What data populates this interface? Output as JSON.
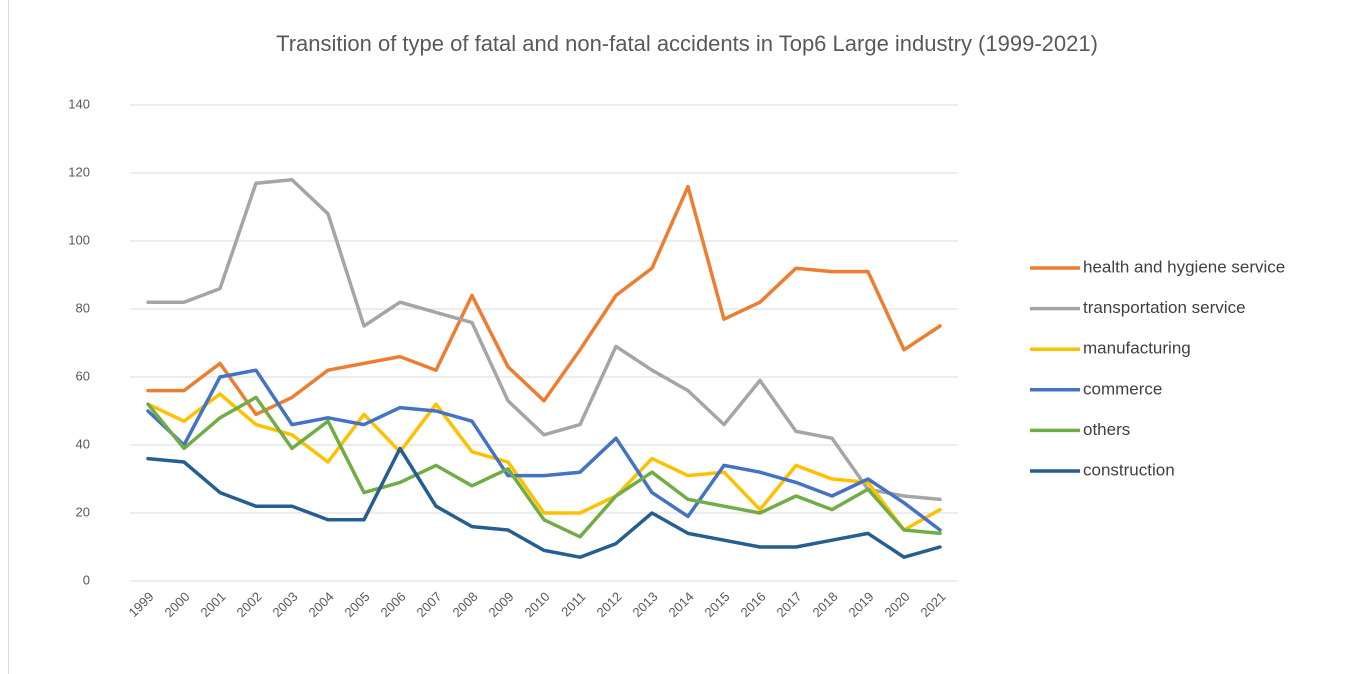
{
  "chart_data": {
    "type": "line",
    "title": "Transition of type of fatal and non-fatal accidents in Top6 Large industry (1999-2021)",
    "categories": [
      "1999",
      "2000",
      "2001",
      "2002",
      "2003",
      "2004",
      "2005",
      "2006",
      "2007",
      "2008",
      "2009",
      "2010",
      "2011",
      "2012",
      "2013",
      "2014",
      "2015",
      "2016",
      "2017",
      "2018",
      "2019",
      "2020",
      "2021"
    ],
    "series": [
      {
        "name": "health and hygiene service",
        "color": "#ED7D31",
        "values": [
          56,
          56,
          64,
          49,
          54,
          62,
          64,
          66,
          62,
          84,
          63,
          53,
          68,
          84,
          92,
          116,
          77,
          82,
          92,
          91,
          91,
          68,
          75
        ]
      },
      {
        "name": "transportation service",
        "color": "#A5A5A5",
        "values": [
          82,
          82,
          86,
          117,
          118,
          108,
          75,
          82,
          79,
          76,
          53,
          43,
          46,
          69,
          62,
          56,
          46,
          59,
          44,
          42,
          27,
          25,
          24
        ]
      },
      {
        "name": "manufacturing",
        "color": "#FFC000",
        "values": [
          52,
          47,
          55,
          46,
          43,
          35,
          49,
          38,
          52,
          38,
          35,
          20,
          20,
          25,
          36,
          31,
          32,
          21,
          34,
          30,
          29,
          15,
          21
        ]
      },
      {
        "name": "commerce",
        "color": "#4472C4",
        "values": [
          50,
          40,
          60,
          62,
          46,
          48,
          46,
          51,
          50,
          47,
          31,
          31,
          32,
          42,
          26,
          19,
          34,
          32,
          29,
          25,
          30,
          23,
          15
        ]
      },
      {
        "name": "others",
        "color": "#70AD47",
        "values": [
          52,
          39,
          48,
          54,
          39,
          47,
          26,
          29,
          34,
          28,
          33,
          18,
          13,
          25,
          32,
          24,
          22,
          20,
          25,
          21,
          27,
          15,
          14
        ]
      },
      {
        "name": "construction",
        "color": "#255E91",
        "values": [
          36,
          35,
          26,
          22,
          22,
          18,
          18,
          39,
          22,
          16,
          15,
          9,
          7,
          11,
          20,
          14,
          12,
          10,
          10,
          12,
          14,
          7,
          10
        ]
      }
    ],
    "ylim": [
      0,
      140
    ],
    "yticks": [
      0,
      20,
      40,
      60,
      80,
      100,
      120,
      140
    ],
    "grid": true,
    "legend": "right"
  }
}
